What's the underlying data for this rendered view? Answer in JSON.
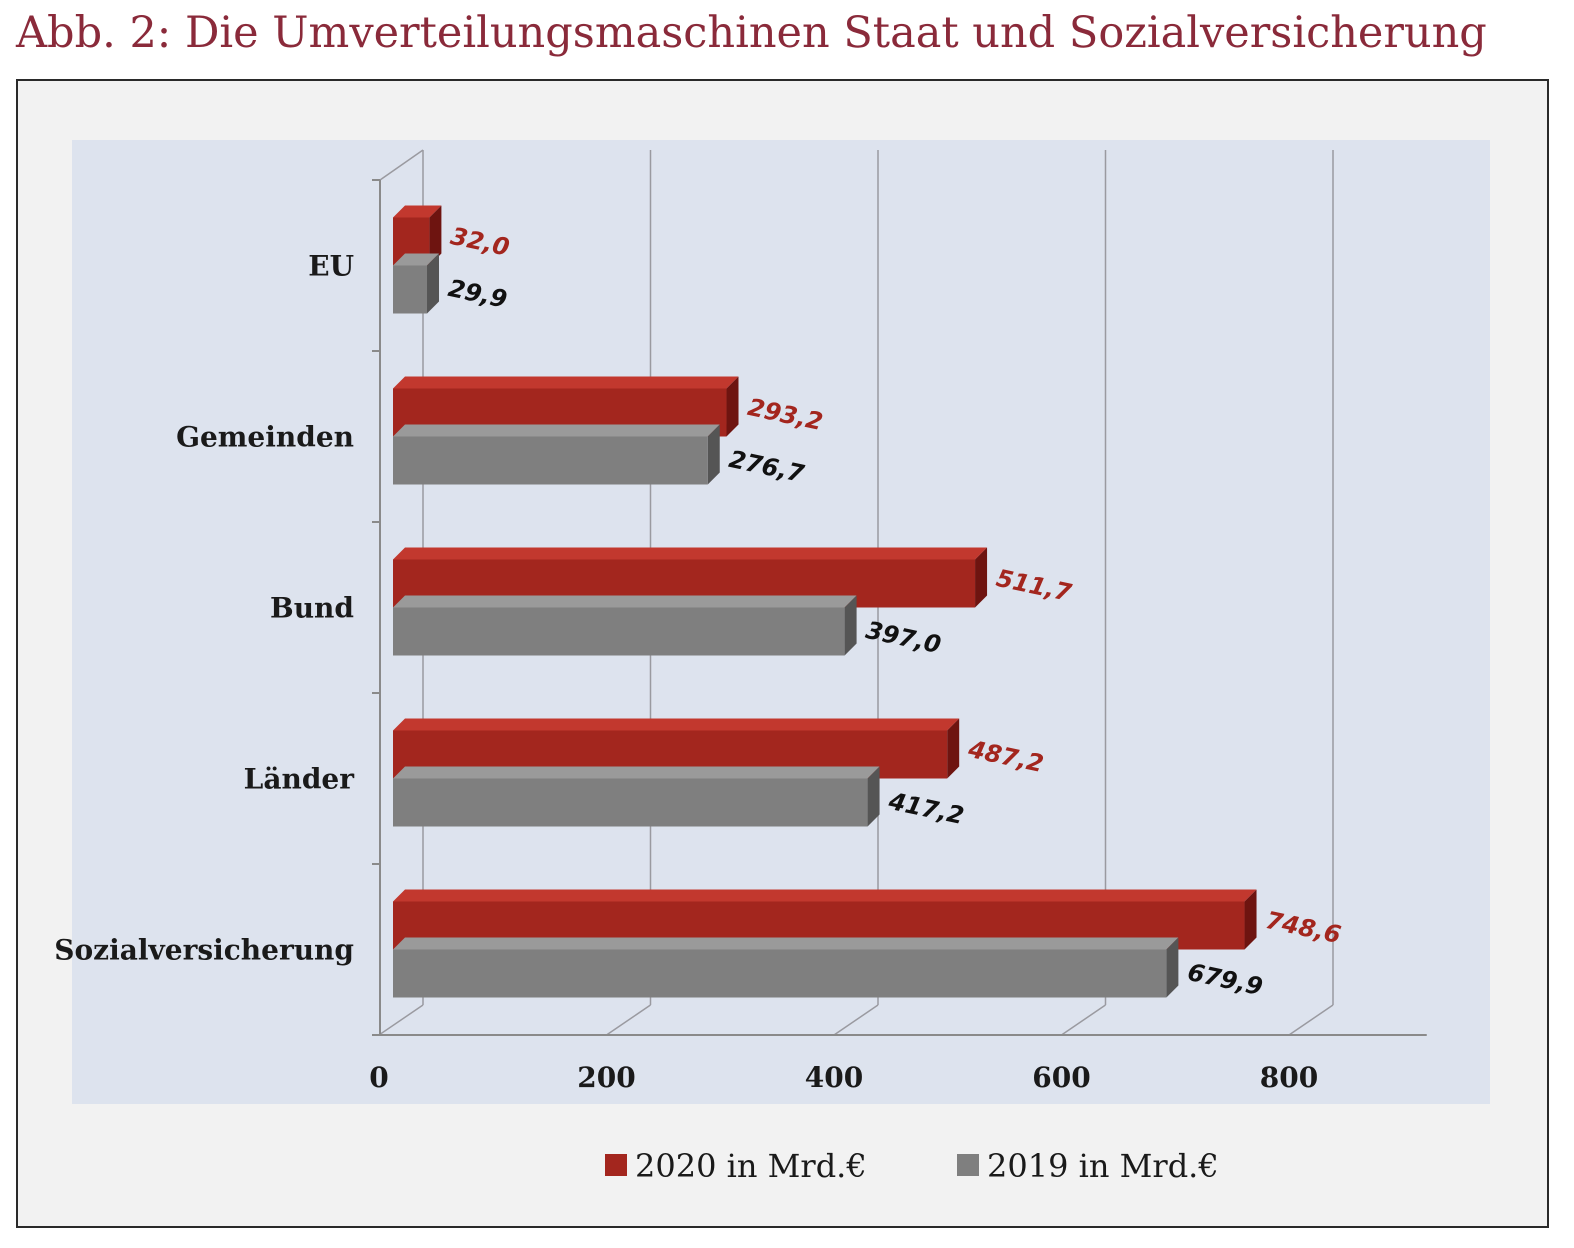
{
  "title": "Abb. 2: Die Umverteilungsmaschinen Staat und Sozialversicherung",
  "colors": {
    "title": "#8a2a3a",
    "series_2020": "#a3261e",
    "series_2019": "#7f7f7f",
    "plot_background": "#dde3ee",
    "frame_background": "#f2f2f2"
  },
  "chart_data": {
    "type": "bar",
    "orientation": "horizontal",
    "style": "3d",
    "categories": [
      "EU",
      "Gemeinden",
      "Bund",
      "Länder",
      "Sozialversicherung"
    ],
    "series": [
      {
        "name": "2020 in Mrd.€",
        "values": [
          32.0,
          293.2,
          511.7,
          487.2,
          748.6
        ],
        "labels": [
          "32,0",
          "293,2",
          "511,7",
          "487,2",
          "748,6"
        ]
      },
      {
        "name": "2019 in Mrd.€",
        "values": [
          29.9,
          276.7,
          397.0,
          417.2,
          679.9
        ],
        "labels": [
          "29,9",
          "276,7",
          "397,0",
          "417,2",
          "679,9"
        ]
      }
    ],
    "xticks": [
      "0",
      "200",
      "400",
      "600",
      "800"
    ],
    "xlim": [
      0,
      900
    ],
    "grid": true,
    "legend_position": "bottom-center"
  }
}
